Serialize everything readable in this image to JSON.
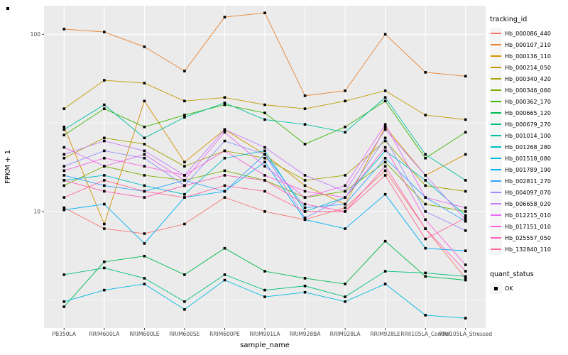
{
  "panel": {
    "background": "#EBEBEB",
    "gridline_color": "#FFFFFF",
    "tick_color": "#333333",
    "tick_label_color": "#4D4D4D"
  },
  "chart_data": {
    "type": "line",
    "title": "",
    "xlabel": "sample_name",
    "ylabel": "FPKM + 1",
    "y_scale": "log10",
    "ylim": [
      2.2,
      145
    ],
    "y_ticks": [
      100,
      10
    ],
    "y_minor_ticks": [
      31.62,
      3.162
    ],
    "grid": true,
    "legend_position": "right",
    "marker": {
      "shape": "square",
      "color": "#000000"
    },
    "categories": [
      "PB350LA",
      "RRIM600LA",
      "RRIM600LE",
      "RRIM600SE",
      "RRIM600PE",
      "RRIM901LA",
      "RRIM928BA",
      "RRIM928LA",
      "RRIM928LE",
      "RRII105LA_Control",
      "RRII105LA_Stressed"
    ],
    "series": [
      {
        "name": "Hb_000086_440",
        "color": "#F8766D",
        "values": [
          10.5,
          8,
          7.5,
          8.5,
          12,
          10,
          9,
          10.5,
          17,
          8,
          4.2
        ]
      },
      {
        "name": "Hb_000107_210",
        "color": "#EA8331",
        "values": [
          107,
          103,
          85,
          62,
          125,
          132,
          45,
          48,
          100,
          61,
          58
        ]
      },
      {
        "name": "Hb_000136_110",
        "color": "#D89000",
        "values": [
          30,
          8.5,
          42,
          19,
          29,
          21,
          14,
          11,
          30,
          16,
          21
        ]
      },
      {
        "name": "Hb_000214_050",
        "color": "#C09B00",
        "values": [
          38,
          55,
          53,
          42,
          44,
          40,
          38,
          42,
          48,
          35,
          33
        ]
      },
      {
        "name": "Hb_000340_420",
        "color": "#A3A500",
        "values": [
          20,
          26,
          24,
          18,
          22,
          20,
          15,
          16,
          25,
          14,
          13
        ]
      },
      {
        "name": "Hb_000346_060",
        "color": "#7CAE00",
        "values": [
          14,
          18,
          16,
          15,
          17,
          15,
          12,
          13,
          19,
          11,
          10
        ]
      },
      {
        "name": "Hb_000362_170",
        "color": "#39B600",
        "values": [
          27,
          38,
          30,
          35,
          40,
          36,
          24,
          30,
          42,
          20,
          28
        ]
      },
      {
        "name": "Hb_000665_120",
        "color": "#00BB4E",
        "values": [
          2.9,
          5.2,
          5.6,
          4.4,
          6.2,
          4.6,
          4.2,
          3.9,
          6.8,
          4.3,
          4.1
        ]
      },
      {
        "name": "Hb_000679_270",
        "color": "#00BF7D",
        "values": [
          4.4,
          4.8,
          4.2,
          3.1,
          4.4,
          3.6,
          3.8,
          3.3,
          4.6,
          4.5,
          4.3
        ]
      },
      {
        "name": "Hb_001014_100",
        "color": "#00C1A3",
        "values": [
          29,
          40,
          26,
          34,
          41,
          33,
          31,
          28,
          44,
          21,
          15
        ]
      },
      {
        "name": "Hb_001268_280",
        "color": "#00BFC4",
        "values": [
          15,
          16,
          14,
          12.5,
          20,
          22,
          10,
          12,
          22,
          15,
          9.5
        ]
      },
      {
        "name": "Hb_001518_080",
        "color": "#00BAE0",
        "values": [
          3.1,
          3.6,
          3.9,
          2.8,
          4.1,
          3.3,
          3.5,
          3.1,
          3.9,
          2.6,
          2.5
        ]
      },
      {
        "name": "Hb_001789_190",
        "color": "#00B0F6",
        "values": [
          10.2,
          11,
          6.6,
          12,
          13,
          19,
          9,
          8,
          12.5,
          6.2,
          6
        ]
      },
      {
        "name": "Hb_002811_270",
        "color": "#35A2FF",
        "values": [
          16,
          14,
          13,
          15,
          13,
          21,
          10.5,
          11,
          20,
          12,
          8.8
        ]
      },
      {
        "name": "Hb_004097_070",
        "color": "#9590FF",
        "values": [
          18,
          22,
          20,
          14,
          25,
          21,
          9.2,
          12,
          26,
          10,
          7.8
        ]
      },
      {
        "name": "Hb_006658_020",
        "color": "#C77CFF",
        "values": [
          21,
          25,
          22,
          16,
          29,
          23,
          16,
          13,
          29,
          16,
          9
        ]
      },
      {
        "name": "Hb_012215_010",
        "color": "#E76BF3",
        "values": [
          23,
          18,
          21,
          15,
          28,
          18,
          12,
          14,
          31,
          12,
          10.5
        ]
      },
      {
        "name": "Hb_017151_010",
        "color": "#FA62DB",
        "values": [
          17,
          20,
          18,
          16,
          22,
          16,
          13,
          12,
          23,
          9,
          5
        ]
      },
      {
        "name": "Hb_025557_050",
        "color": "#FF62BC",
        "values": [
          15,
          13,
          12,
          14,
          16,
          15,
          11,
          10,
          18,
          8,
          4.6
        ]
      },
      {
        "name": "Hb_132840_110",
        "color": "#FF6A98",
        "values": [
          12,
          15,
          13,
          12,
          14,
          13,
          10,
          10,
          16,
          7,
          9.2
        ]
      }
    ],
    "legend": {
      "color_title": "tracking_id",
      "shape_title": "quant_status",
      "shape_entries": [
        "OK"
      ]
    }
  }
}
